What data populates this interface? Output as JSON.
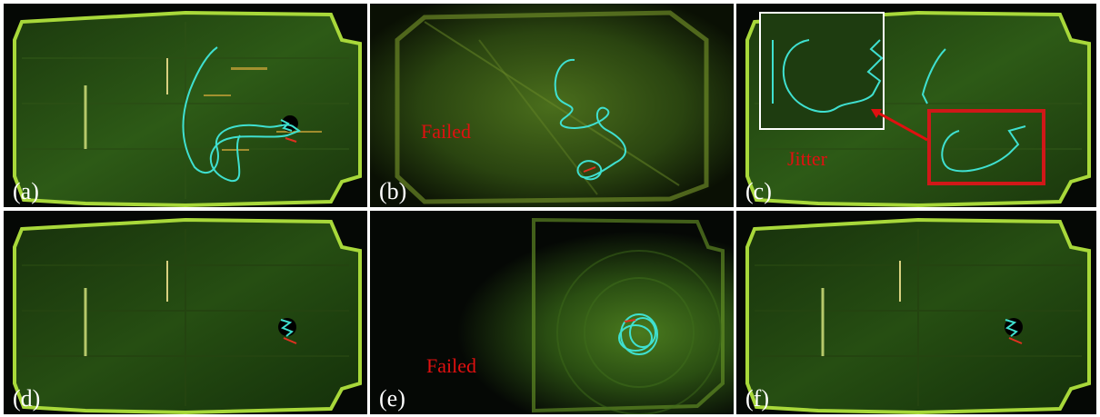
{
  "panels": [
    {
      "label": "(a)"
    },
    {
      "label": "(b)",
      "note": "Failed"
    },
    {
      "label": "(c)",
      "note": "Jitter"
    },
    {
      "label": "(d)"
    },
    {
      "label": "(e)",
      "note": "Failed"
    },
    {
      "label": "(f)"
    }
  ],
  "colors": {
    "background": "#050805",
    "map_green": "#3f7a1e",
    "map_edge": "#b6e23c",
    "map_point": "#d4a93a",
    "trajectory": "#3fe0d0",
    "annotation": "#e01010",
    "inset_frame": "#ffffff"
  }
}
